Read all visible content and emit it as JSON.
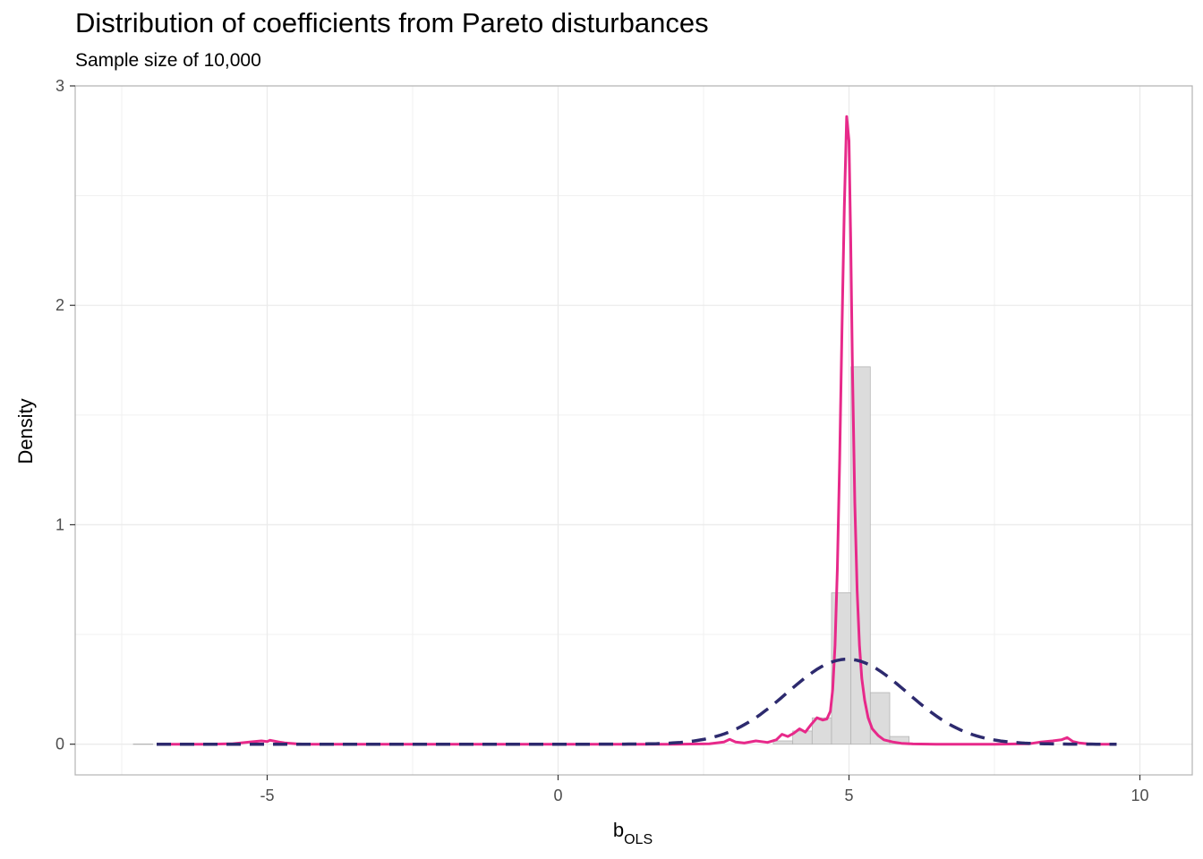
{
  "chart_data": {
    "type": "histogram",
    "title": "Distribution of coefficients from Pareto disturbances",
    "subtitle": "Sample size of 10,000",
    "xlabel": {
      "main": "b",
      "sub": "OLS"
    },
    "ylabel": "Density",
    "xlim": [
      -8.3,
      10.9
    ],
    "ylim": [
      -0.14,
      3.0
    ],
    "x_ticks": [
      -5,
      0,
      5,
      10
    ],
    "x_tick_labels": [
      "-5",
      "0",
      "5",
      "10"
    ],
    "y_ticks": [
      0,
      1,
      2,
      3
    ],
    "y_tick_labels": [
      "0",
      "1",
      "2",
      "3"
    ],
    "grid": true,
    "bin_width": 0.333,
    "histogram": {
      "bin_left_edges": [
        -7.3,
        3.7,
        4.033,
        4.367,
        4.7,
        5.033,
        5.367,
        5.7,
        6.033
      ],
      "values": [
        0.001,
        0.015,
        0.06,
        0.12,
        0.69,
        1.72,
        0.235,
        0.035,
        0.004
      ],
      "fill": "#dcdcdc",
      "stroke": "#b5b5b5"
    },
    "series": [
      {
        "kind": "kernel-density",
        "color": "#e7298a",
        "x": [
          -6.9,
          -6.0,
          -5.6,
          -5.3,
          -5.1,
          -5.0,
          -4.95,
          -4.8,
          -4.7,
          -4.5,
          -4.3,
          -4.0,
          0.0,
          2.0,
          2.6,
          2.85,
          2.95,
          3.05,
          3.2,
          3.4,
          3.6,
          3.75,
          3.85,
          3.95,
          4.05,
          4.15,
          4.25,
          4.35,
          4.45,
          4.55,
          4.62,
          4.68,
          4.72,
          4.76,
          4.8,
          4.84,
          4.88,
          4.92,
          4.96,
          5.0,
          5.03,
          5.06,
          5.1,
          5.14,
          5.18,
          5.22,
          5.27,
          5.33,
          5.4,
          5.5,
          5.6,
          5.75,
          5.9,
          6.1,
          6.5,
          7.5,
          8.1,
          8.3,
          8.5,
          8.65,
          8.75,
          8.85,
          8.95,
          9.1,
          9.3,
          9.6
        ],
        "y": [
          0.0,
          0.0,
          0.002,
          0.01,
          0.015,
          0.012,
          0.018,
          0.01,
          0.006,
          0.002,
          0.0,
          0.0,
          0.0,
          0.0,
          0.002,
          0.01,
          0.022,
          0.01,
          0.005,
          0.015,
          0.008,
          0.02,
          0.045,
          0.035,
          0.05,
          0.07,
          0.055,
          0.09,
          0.12,
          0.11,
          0.115,
          0.15,
          0.25,
          0.45,
          0.8,
          1.3,
          1.9,
          2.45,
          2.86,
          2.75,
          2.3,
          1.7,
          1.1,
          0.7,
          0.45,
          0.3,
          0.2,
          0.12,
          0.07,
          0.04,
          0.02,
          0.01,
          0.004,
          0.001,
          0.0,
          0.0,
          0.002,
          0.01,
          0.015,
          0.02,
          0.03,
          0.012,
          0.006,
          0.002,
          0.0,
          0.0
        ]
      },
      {
        "kind": "normal-density",
        "color": "#2d2a6e",
        "dash": true,
        "mean": 4.97,
        "sd": 1.03,
        "x_range": [
          -6.9,
          9.6
        ]
      }
    ]
  }
}
